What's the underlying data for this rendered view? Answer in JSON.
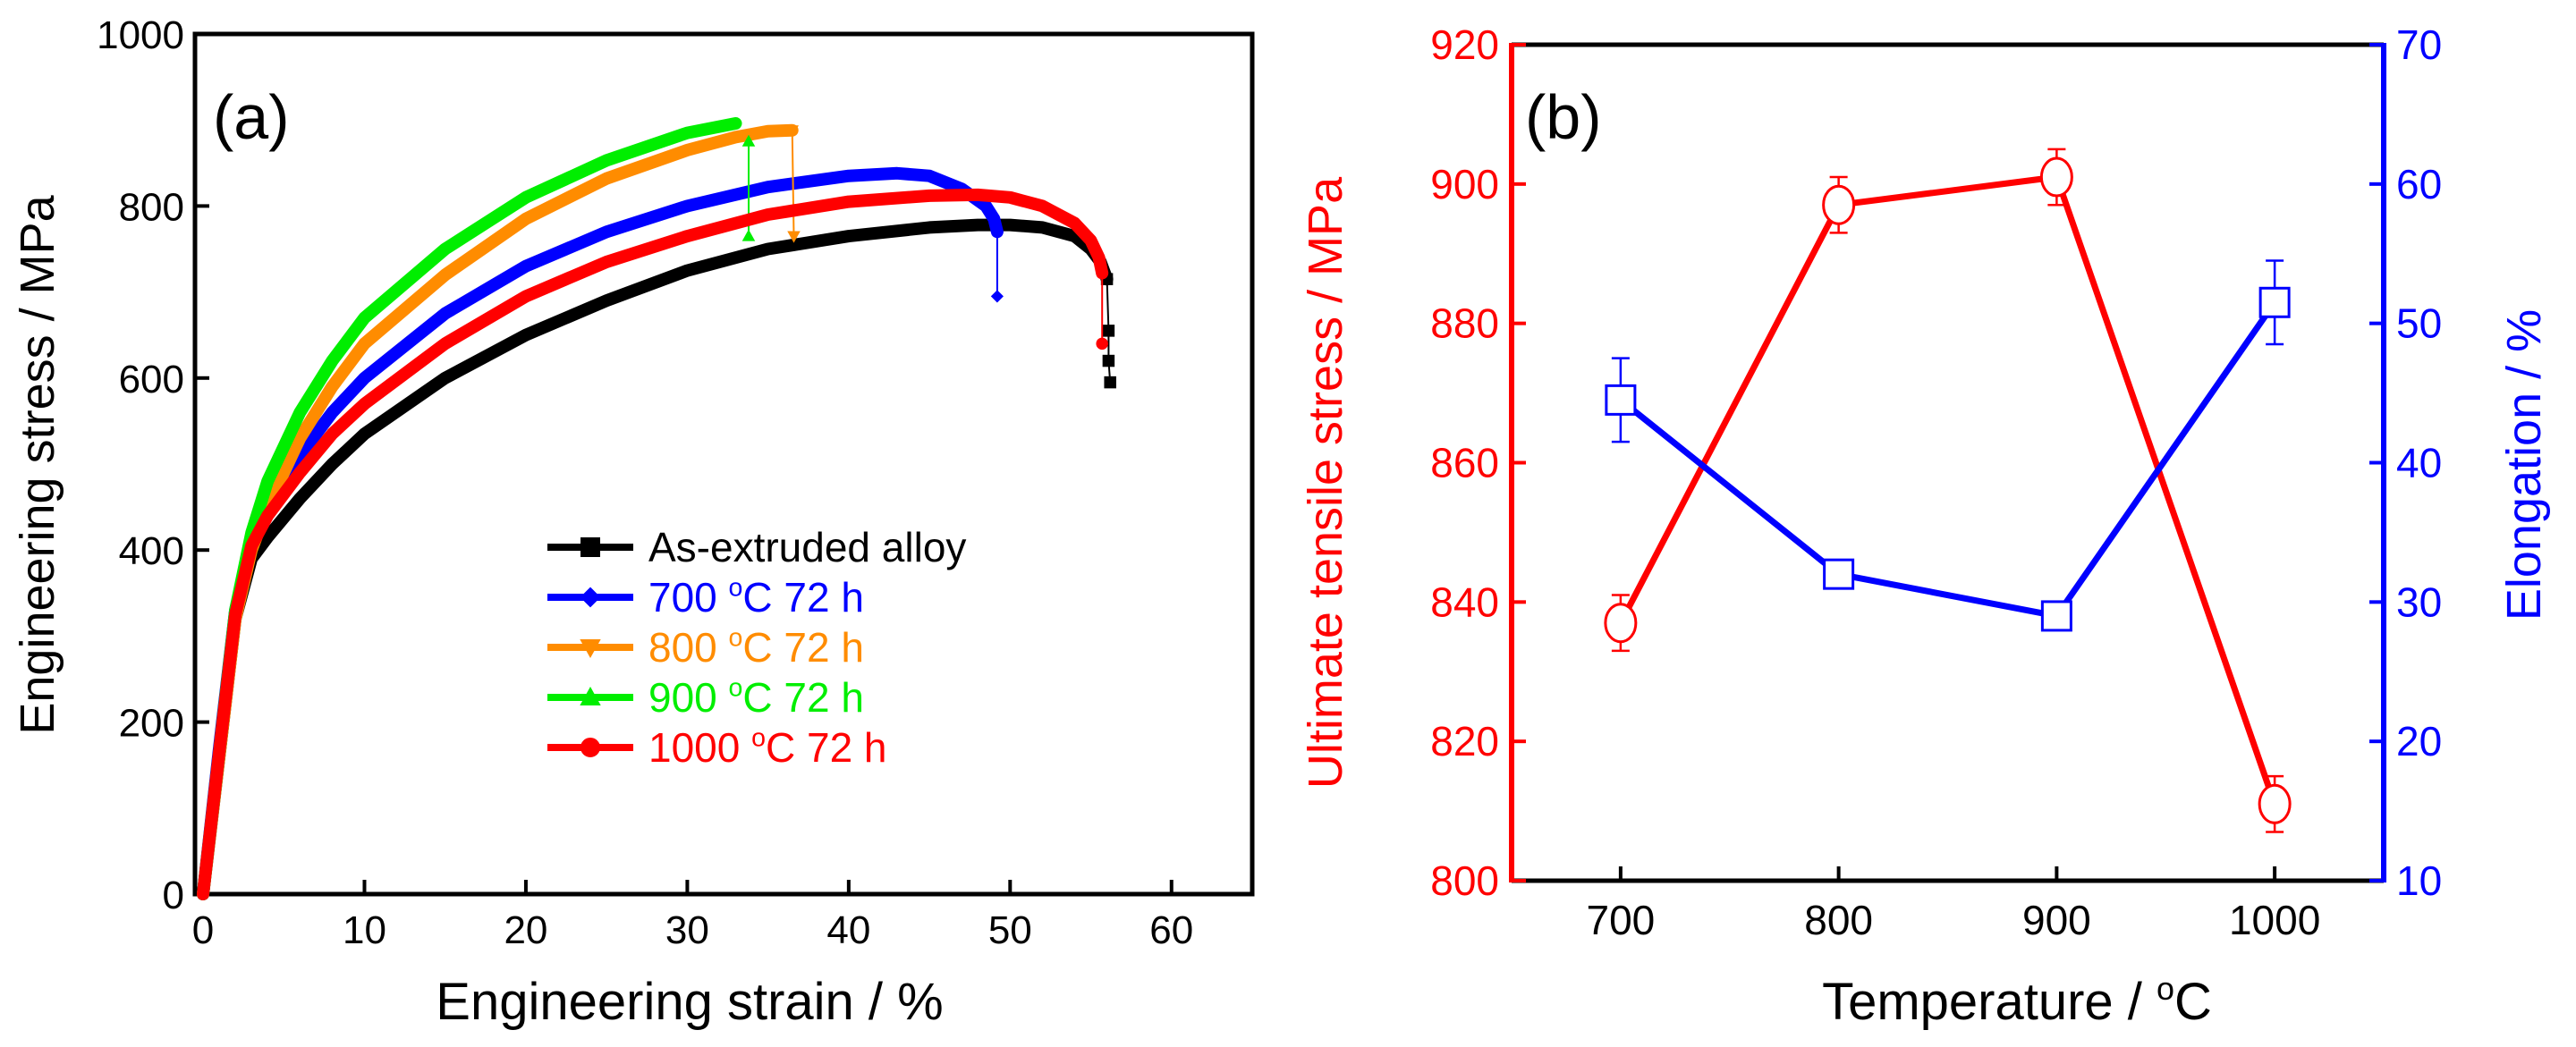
{
  "chart_data": [
    {
      "type": "line",
      "panel_label": "(a)",
      "xlabel": "Engineering strain / %",
      "ylabel": "Engineering stress / MPa",
      "xlim": [
        -0.5,
        65
      ],
      "ylim": [
        0,
        1000
      ],
      "xticks": [
        0,
        10,
        20,
        30,
        40,
        50,
        60
      ],
      "yticks": [
        0,
        200,
        400,
        600,
        800,
        1000
      ],
      "legend_position": "lower-right",
      "series": [
        {
          "name": "As-extruded alloy",
          "color": "#000000",
          "marker": "square",
          "points": [
            [
              0,
              0
            ],
            [
              1,
              160
            ],
            [
              2,
              320
            ],
            [
              3,
              390
            ],
            [
              4,
              415
            ],
            [
              6,
              460
            ],
            [
              8,
              500
            ],
            [
              10,
              535
            ],
            [
              15,
              600
            ],
            [
              20,
              650
            ],
            [
              25,
              690
            ],
            [
              30,
              725
            ],
            [
              35,
              750
            ],
            [
              40,
              765
            ],
            [
              45,
              775
            ],
            [
              48,
              778
            ],
            [
              50,
              778
            ],
            [
              52,
              775
            ],
            [
              54,
              765
            ],
            [
              55,
              750
            ],
            [
              55.6,
              735
            ],
            [
              56,
              715
            ]
          ],
          "drop": [
            [
              56,
              715
            ],
            [
              56.1,
              655
            ],
            [
              56.1,
              620
            ],
            [
              56.2,
              595
            ]
          ]
        },
        {
          "name": "700 °C 72 h",
          "color": "#0000ff",
          "marker": "diamond",
          "points": [
            [
              0,
              0
            ],
            [
              1,
              170
            ],
            [
              2,
              330
            ],
            [
              3,
              410
            ],
            [
              4,
              450
            ],
            [
              6,
              510
            ],
            [
              8,
              560
            ],
            [
              10,
              600
            ],
            [
              15,
              675
            ],
            [
              20,
              730
            ],
            [
              25,
              770
            ],
            [
              30,
              800
            ],
            [
              35,
              822
            ],
            [
              40,
              835
            ],
            [
              43,
              838
            ],
            [
              45,
              835
            ],
            [
              47,
              820
            ],
            [
              48.5,
              800
            ],
            [
              49,
              785
            ],
            [
              49.2,
              770
            ]
          ],
          "drop": [
            [
              49.2,
              770
            ],
            [
              49.2,
              695
            ]
          ]
        },
        {
          "name": "800 °C 72 h",
          "color": "#ff8c00",
          "marker": "triangle-down",
          "points": [
            [
              0,
              0
            ],
            [
              1,
              160
            ],
            [
              2,
              320
            ],
            [
              3,
              400
            ],
            [
              4,
              450
            ],
            [
              6,
              530
            ],
            [
              8,
              590
            ],
            [
              10,
              640
            ],
            [
              15,
              720
            ],
            [
              20,
              785
            ],
            [
              25,
              832
            ],
            [
              30,
              865
            ],
            [
              33,
              880
            ],
            [
              35,
              887
            ],
            [
              36.5,
              888
            ]
          ],
          "drop": [
            [
              36.5,
              888
            ],
            [
              36.6,
              765
            ]
          ]
        },
        {
          "name": "900 °C 72 h",
          "color": "#00ee00",
          "marker": "triangle-up",
          "points": [
            [
              0,
              0
            ],
            [
              1,
              165
            ],
            [
              2,
              330
            ],
            [
              3,
              420
            ],
            [
              4,
              480
            ],
            [
              6,
              560
            ],
            [
              8,
              620
            ],
            [
              10,
              670
            ],
            [
              15,
              750
            ],
            [
              20,
              810
            ],
            [
              25,
              853
            ],
            [
              30,
              885
            ],
            [
              33,
              896
            ]
          ],
          "drop": [
            [
              33.8,
              875
            ],
            [
              33.8,
              765
            ]
          ]
        },
        {
          "name": "1000 °C 72 h",
          "color": "#ff0000",
          "marker": "circle",
          "points": [
            [
              0,
              0
            ],
            [
              1,
              165
            ],
            [
              2,
              325
            ],
            [
              3,
              405
            ],
            [
              4,
              440
            ],
            [
              6,
              490
            ],
            [
              8,
              535
            ],
            [
              10,
              570
            ],
            [
              15,
              640
            ],
            [
              20,
              695
            ],
            [
              25,
              735
            ],
            [
              30,
              765
            ],
            [
              35,
              790
            ],
            [
              40,
              805
            ],
            [
              45,
              812
            ],
            [
              48,
              813
            ],
            [
              50,
              810
            ],
            [
              52,
              800
            ],
            [
              54,
              780
            ],
            [
              55,
              760
            ],
            [
              55.5,
              740
            ],
            [
              55.7,
              722
            ]
          ],
          "drop": [
            [
              55.7,
              722
            ],
            [
              55.7,
              640
            ]
          ]
        }
      ]
    },
    {
      "type": "line",
      "panel_label": "(b)",
      "xlabel": "Temperature / °C",
      "ylabel_left": "Ultimate tensile stress / MPa",
      "ylabel_right": "Elongation / %",
      "xlim": [
        650,
        1050
      ],
      "ylim_left": [
        800,
        920
      ],
      "ylim_right": [
        10,
        70
      ],
      "xticks": [
        700,
        800,
        900,
        1000
      ],
      "yticks_left": [
        800,
        820,
        840,
        860,
        880,
        900,
        920
      ],
      "yticks_right": [
        10,
        20,
        30,
        40,
        50,
        60,
        70
      ],
      "left_axis_color": "#ff0000",
      "right_axis_color": "#0000ff",
      "series": [
        {
          "name": "Ultimate tensile stress",
          "axis": "left",
          "color": "#ff0000",
          "marker": "circle",
          "x": [
            700,
            800,
            900,
            1000
          ],
          "values": [
            837,
            897,
            901,
            811
          ],
          "errors": [
            4,
            4,
            4,
            4
          ]
        },
        {
          "name": "Elongation",
          "axis": "right",
          "color": "#0000ff",
          "marker": "square",
          "x": [
            700,
            800,
            900,
            1000
          ],
          "values": [
            44.5,
            32,
            29,
            51.5
          ],
          "errors": [
            3,
            1,
            0.8,
            3
          ]
        }
      ]
    }
  ]
}
